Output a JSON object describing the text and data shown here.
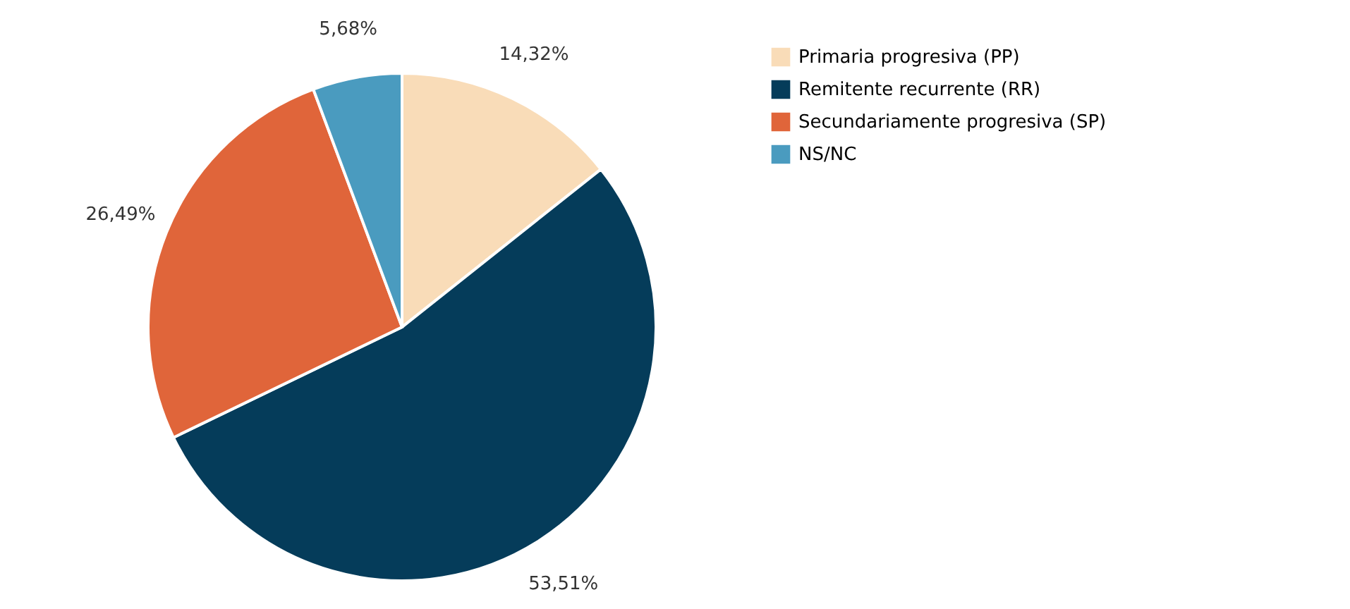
{
  "chart_data": {
    "type": "pie",
    "categories": [
      "Primaria progresiva (PP)",
      "Remitente recurrente (RR)",
      "Secundariamente progresiva (SP)",
      "NS/NC"
    ],
    "values": [
      14.32,
      53.51,
      26.49,
      5.68
    ],
    "colors": [
      "#f9dcb8",
      "#053c5a",
      "#e0653a",
      "#4a9bbf"
    ],
    "value_labels": [
      "14,32%",
      "53,51%",
      "26,49%",
      "5,68%"
    ],
    "legend": "right"
  }
}
